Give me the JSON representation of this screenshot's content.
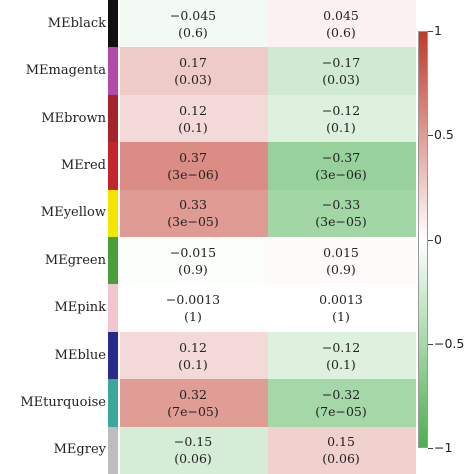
{
  "chart_data": {
    "type": "heatmap",
    "rows": [
      "MEblack",
      "MEmagenta",
      "MEbrown",
      "MEred",
      "MEyellow",
      "MEgreen",
      "MEpink",
      "MEblue",
      "MEturquoise",
      "MEgrey"
    ],
    "row_colors": [
      "#111111",
      "#b24aa8",
      "#a5232a",
      "#c1272d",
      "#f2e600",
      "#4a9e3a",
      "#f2c6d0",
      "#2a2a8c",
      "#3aa79a",
      "#bdbdbd"
    ],
    "columns": 2,
    "values": [
      [
        -0.045,
        0.045
      ],
      [
        0.17,
        -0.17
      ],
      [
        0.12,
        -0.12
      ],
      [
        0.37,
        -0.37
      ],
      [
        0.33,
        -0.33
      ],
      [
        -0.015,
        0.015
      ],
      [
        -0.0013,
        0.0013
      ],
      [
        0.12,
        -0.12
      ],
      [
        0.32,
        -0.32
      ],
      [
        -0.15,
        0.15
      ]
    ],
    "value_labels": [
      [
        "−0.045",
        "0.045"
      ],
      [
        "0.17",
        "−0.17"
      ],
      [
        "0.12",
        "−0.12"
      ],
      [
        "0.37",
        "−0.37"
      ],
      [
        "0.33",
        "−0.33"
      ],
      [
        "−0.015",
        "0.015"
      ],
      [
        "−0.0013",
        "0.0013"
      ],
      [
        "0.12",
        "−0.12"
      ],
      [
        "0.32",
        "−0.32"
      ],
      [
        "−0.15",
        "0.15"
      ]
    ],
    "p_values": [
      [
        "(0.6)",
        "(0.6)"
      ],
      [
        "(0.03)",
        "(0.03)"
      ],
      [
        "(0.1)",
        "(0.1)"
      ],
      [
        "(3e−06)",
        "(3e−06)"
      ],
      [
        "(3e−05)",
        "(3e−05)"
      ],
      [
        "(0.9)",
        "(0.9)"
      ],
      [
        "(1)",
        "(1)"
      ],
      [
        "(0.1)",
        "(0.1)"
      ],
      [
        "(7e−05)",
        "(7e−05)"
      ],
      [
        "(0.06)",
        "(0.06)"
      ]
    ],
    "colorbar": {
      "range": [
        -1,
        1
      ],
      "ticks": [
        1,
        0.5,
        0,
        -0.5,
        -1
      ],
      "tick_labels": [
        "1",
        "0.5",
        "0",
        "−0.5",
        "−1"
      ],
      "positive_color": "#c0392b",
      "negative_color": "#4caf50",
      "zero_color": "#ffffff"
    }
  }
}
